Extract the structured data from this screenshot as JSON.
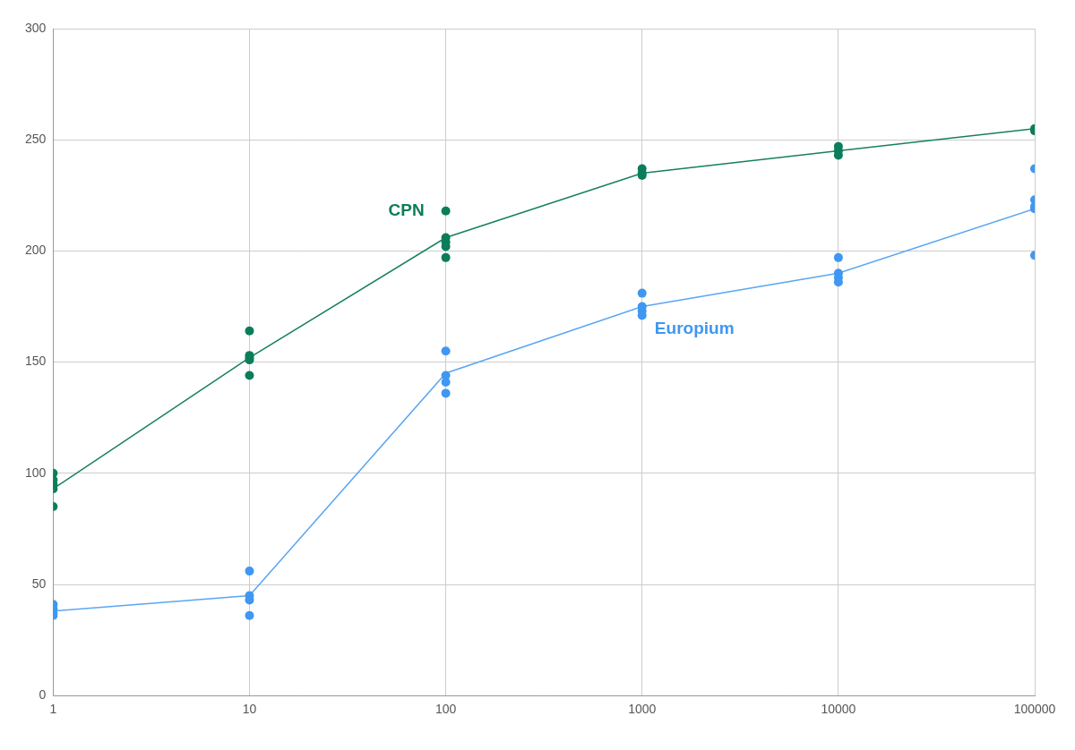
{
  "chart_data": {
    "type": "scatter",
    "log": "x",
    "grid": true,
    "xlim": [
      1,
      100000
    ],
    "xticks": [
      1,
      10,
      100,
      1000,
      10000,
      100000
    ],
    "ylim": [
      0,
      300
    ],
    "yticks": [
      0,
      50,
      100,
      150,
      200,
      250,
      300
    ],
    "series": [
      {
        "name": "CPN",
        "type": "scatter",
        "marker": "circle",
        "color": "#0b7d5b",
        "x": [
          1,
          1,
          1,
          1,
          1,
          10,
          10,
          10,
          10,
          10,
          100,
          100,
          100,
          100,
          100,
          1000,
          1000,
          1000,
          10000,
          10000,
          10000,
          100000,
          100000
        ],
        "values": [
          100,
          97,
          95,
          93,
          85,
          164,
          153,
          152,
          151,
          144,
          218,
          206,
          204,
          202,
          197,
          237,
          235,
          234,
          247,
          245,
          243,
          255,
          254
        ]
      },
      {
        "name": "CPN",
        "type": "line",
        "marker": "none",
        "line_style": "solid",
        "color": "#16805f",
        "x": [
          1,
          10,
          100,
          1000,
          10000,
          100000
        ],
        "values": [
          93,
          152,
          206,
          235,
          245,
          255
        ]
      },
      {
        "name": "Europium",
        "type": "scatter",
        "marker": "circle",
        "color": "#3f97f2",
        "x": [
          1,
          1,
          1,
          1,
          10,
          10,
          10,
          10,
          100,
          100,
          100,
          100,
          1000,
          1000,
          1000,
          1000,
          10000,
          10000,
          10000,
          10000,
          100000,
          100000,
          100000,
          100000,
          100000
        ],
        "values": [
          41,
          39,
          37,
          36,
          56,
          45,
          43,
          36,
          155,
          144,
          141,
          136,
          181,
          175,
          173,
          171,
          197,
          190,
          188,
          186,
          237,
          223,
          220,
          219,
          198
        ]
      },
      {
        "name": "Europium",
        "type": "line",
        "marker": "none",
        "line_style": "solid",
        "color": "#5aa7f2",
        "x": [
          1,
          10,
          100,
          1000,
          10000,
          100000
        ],
        "values": [
          38,
          45,
          145,
          175,
          190,
          219
        ]
      }
    ],
    "annotations": [
      {
        "text": "CPN",
        "x": 51,
        "y": 218,
        "color": "#0b7d5b"
      },
      {
        "text": "Europium",
        "x": 1160,
        "y": 165,
        "color": "#3f97f2"
      }
    ]
  }
}
